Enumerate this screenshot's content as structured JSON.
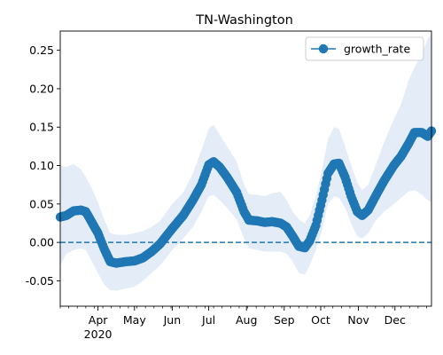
{
  "chart_data": {
    "type": "line",
    "title": "TN-Washington",
    "xlabel": "",
    "ylabel": "",
    "x_ticks": [
      {
        "date": "2020-04-01",
        "label": "Apr",
        "sublabel": "2020"
      },
      {
        "date": "2020-05-01",
        "label": "May"
      },
      {
        "date": "2020-06-01",
        "label": "Jun"
      },
      {
        "date": "2020-07-01",
        "label": "Jul"
      },
      {
        "date": "2020-08-01",
        "label": "Aug"
      },
      {
        "date": "2020-09-01",
        "label": "Sep"
      },
      {
        "date": "2020-10-01",
        "label": "Oct"
      },
      {
        "date": "2020-11-01",
        "label": "Nov"
      },
      {
        "date": "2020-12-01",
        "label": "Dec"
      }
    ],
    "y_ticks": [
      "-0.05",
      "0.00",
      "0.05",
      "0.10",
      "0.15",
      "0.20",
      "0.25"
    ],
    "xlim": [
      "2020-03-01",
      "2020-12-31"
    ],
    "ylim": [
      -0.083,
      0.275
    ],
    "grid": false,
    "legend_position": "top-right",
    "reference_line": {
      "y": 0.0,
      "style": "dashed"
    },
    "series": [
      {
        "name": "growth_rate",
        "color": "#1f77b4",
        "band_color": "#dfeaf6",
        "points": [
          {
            "date": "2020-03-01",
            "value": 0.033,
            "lower": -0.03,
            "upper": 0.1
          },
          {
            "date": "2020-03-06",
            "value": 0.035,
            "lower": -0.015,
            "upper": 0.098
          },
          {
            "date": "2020-03-12",
            "value": 0.041,
            "lower": -0.01,
            "upper": 0.102
          },
          {
            "date": "2020-03-18",
            "value": 0.042,
            "lower": -0.008,
            "upper": 0.095
          },
          {
            "date": "2020-03-22",
            "value": 0.04,
            "lower": -0.01,
            "upper": 0.085
          },
          {
            "date": "2020-03-27",
            "value": 0.026,
            "lower": -0.025,
            "upper": 0.07
          },
          {
            "date": "2020-04-01",
            "value": 0.012,
            "lower": -0.04,
            "upper": 0.052
          },
          {
            "date": "2020-04-06",
            "value": -0.008,
            "lower": -0.055,
            "upper": 0.03
          },
          {
            "date": "2020-04-11",
            "value": -0.025,
            "lower": -0.062,
            "upper": 0.012
          },
          {
            "date": "2020-04-16",
            "value": -0.027,
            "lower": -0.063,
            "upper": 0.01
          },
          {
            "date": "2020-04-24",
            "value": -0.025,
            "lower": -0.06,
            "upper": 0.01
          },
          {
            "date": "2020-05-01",
            "value": -0.024,
            "lower": -0.058,
            "upper": 0.012
          },
          {
            "date": "2020-05-08",
            "value": -0.02,
            "lower": -0.05,
            "upper": 0.015
          },
          {
            "date": "2020-05-15",
            "value": -0.012,
            "lower": -0.04,
            "upper": 0.02
          },
          {
            "date": "2020-05-22",
            "value": -0.002,
            "lower": -0.03,
            "upper": 0.028
          },
          {
            "date": "2020-06-01",
            "value": 0.018,
            "lower": -0.01,
            "upper": 0.05
          },
          {
            "date": "2020-06-10",
            "value": 0.035,
            "lower": 0.005,
            "upper": 0.065
          },
          {
            "date": "2020-06-18",
            "value": 0.055,
            "lower": 0.02,
            "upper": 0.09
          },
          {
            "date": "2020-06-25",
            "value": 0.075,
            "lower": 0.04,
            "upper": 0.12
          },
          {
            "date": "2020-07-01",
            "value": 0.101,
            "lower": 0.06,
            "upper": 0.148
          },
          {
            "date": "2020-07-05",
            "value": 0.105,
            "lower": 0.062,
            "upper": 0.153
          },
          {
            "date": "2020-07-10",
            "value": 0.098,
            "lower": 0.055,
            "upper": 0.14
          },
          {
            "date": "2020-07-16",
            "value": 0.085,
            "lower": 0.045,
            "upper": 0.125
          },
          {
            "date": "2020-07-24",
            "value": 0.065,
            "lower": 0.03,
            "upper": 0.105
          },
          {
            "date": "2020-07-30",
            "value": 0.04,
            "lower": 0.005,
            "upper": 0.075
          },
          {
            "date": "2020-08-03",
            "value": 0.029,
            "lower": -0.008,
            "upper": 0.063
          },
          {
            "date": "2020-08-10",
            "value": 0.028,
            "lower": -0.01,
            "upper": 0.062
          },
          {
            "date": "2020-08-16",
            "value": 0.026,
            "lower": -0.012,
            "upper": 0.06
          },
          {
            "date": "2020-08-22",
            "value": 0.027,
            "lower": -0.012,
            "upper": 0.064
          },
          {
            "date": "2020-08-29",
            "value": 0.025,
            "lower": -0.012,
            "upper": 0.066
          },
          {
            "date": "2020-09-03",
            "value": 0.02,
            "lower": -0.015,
            "upper": 0.055
          },
          {
            "date": "2020-09-08",
            "value": 0.008,
            "lower": -0.025,
            "upper": 0.04
          },
          {
            "date": "2020-09-13",
            "value": -0.005,
            "lower": -0.04,
            "upper": 0.03
          },
          {
            "date": "2020-09-18",
            "value": -0.007,
            "lower": -0.042,
            "upper": 0.025
          },
          {
            "date": "2020-09-22",
            "value": 0.002,
            "lower": -0.03,
            "upper": 0.035
          },
          {
            "date": "2020-09-27",
            "value": 0.022,
            "lower": -0.01,
            "upper": 0.06
          },
          {
            "date": "2020-10-02",
            "value": 0.055,
            "lower": 0.015,
            "upper": 0.095
          },
          {
            "date": "2020-10-07",
            "value": 0.09,
            "lower": 0.05,
            "upper": 0.135
          },
          {
            "date": "2020-10-12",
            "value": 0.102,
            "lower": 0.06,
            "upper": 0.15
          },
          {
            "date": "2020-10-16",
            "value": 0.103,
            "lower": 0.058,
            "upper": 0.148
          },
          {
            "date": "2020-10-21",
            "value": 0.085,
            "lower": 0.045,
            "upper": 0.125
          },
          {
            "date": "2020-10-26",
            "value": 0.06,
            "lower": 0.025,
            "upper": 0.1
          },
          {
            "date": "2020-10-31",
            "value": 0.04,
            "lower": 0.008,
            "upper": 0.078
          },
          {
            "date": "2020-11-04",
            "value": 0.035,
            "lower": 0.005,
            "upper": 0.068
          },
          {
            "date": "2020-11-09",
            "value": 0.042,
            "lower": 0.012,
            "upper": 0.075
          },
          {
            "date": "2020-11-15",
            "value": 0.06,
            "lower": 0.028,
            "upper": 0.1
          },
          {
            "date": "2020-11-22",
            "value": 0.08,
            "lower": 0.04,
            "upper": 0.13
          },
          {
            "date": "2020-11-30",
            "value": 0.1,
            "lower": 0.05,
            "upper": 0.16
          },
          {
            "date": "2020-12-06",
            "value": 0.112,
            "lower": 0.058,
            "upper": 0.18
          },
          {
            "date": "2020-12-12",
            "value": 0.128,
            "lower": 0.066,
            "upper": 0.21
          },
          {
            "date": "2020-12-17",
            "value": 0.143,
            "lower": 0.068,
            "upper": 0.228
          },
          {
            "date": "2020-12-23",
            "value": 0.143,
            "lower": 0.062,
            "upper": 0.245
          },
          {
            "date": "2020-12-28",
            "value": 0.138,
            "lower": 0.055,
            "upper": 0.265
          },
          {
            "date": "2020-12-31",
            "value": 0.145,
            "lower": 0.052,
            "upper": 0.272
          }
        ]
      }
    ]
  }
}
